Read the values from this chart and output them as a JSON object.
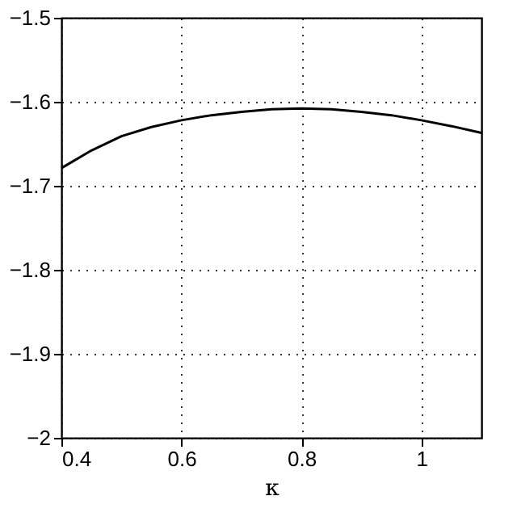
{
  "chart_data": {
    "type": "line",
    "xlabel": "κ",
    "x": [
      0.4,
      0.45,
      0.5,
      0.55,
      0.6,
      0.65,
      0.7,
      0.75,
      0.8,
      0.85,
      0.9,
      0.95,
      1.0,
      1.05,
      1.1
    ],
    "series": [
      {
        "color": "#000000",
        "values": [
          -1.679,
          -1.658,
          -1.641,
          -1.63,
          -1.622,
          -1.616,
          -1.612,
          -1.609,
          -1.608,
          -1.609,
          -1.612,
          -1.616,
          -1.622,
          -1.629,
          -1.637
        ]
      }
    ],
    "xlim": [
      0.4,
      1.1
    ],
    "xticks": [
      0.4,
      0.6,
      0.8,
      1
    ],
    "ylim": [
      -2,
      -1.5
    ],
    "yticks": [
      -2,
      -1.9,
      -1.8,
      -1.7,
      -1.6,
      -1.5
    ],
    "grid": true,
    "marker": "none",
    "line_style": "solid"
  }
}
